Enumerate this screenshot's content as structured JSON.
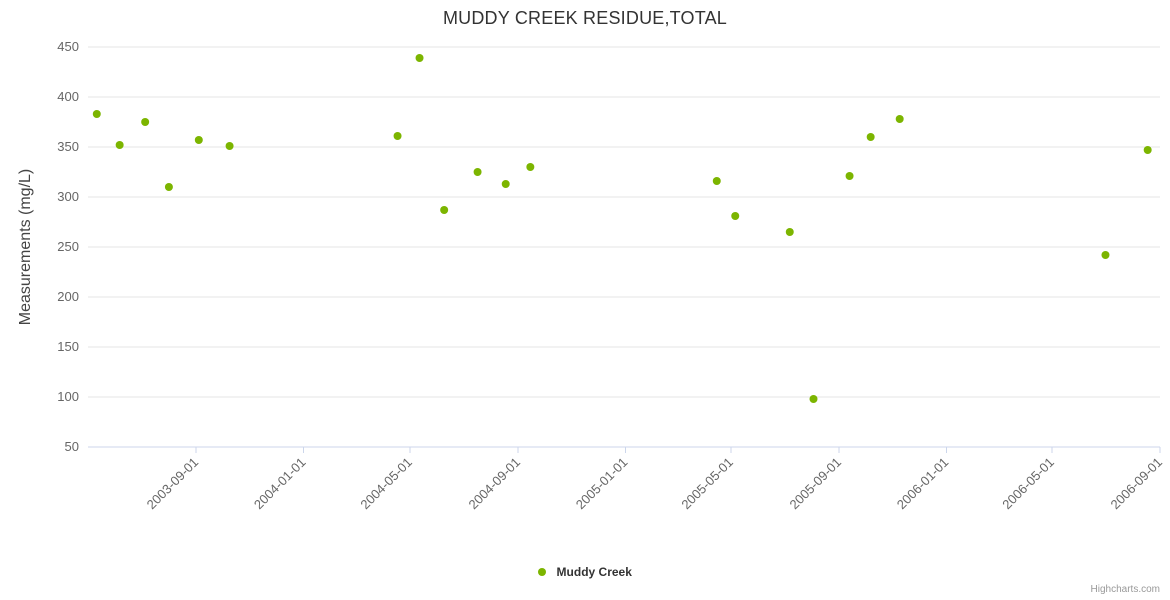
{
  "chart_data": {
    "type": "scatter",
    "title": "MUDDY CREEK RESIDUE,TOTAL",
    "xlabel": "",
    "ylabel": "Measurements (mg/L)",
    "ylim": [
      50,
      450
    ],
    "y_ticks": [
      50,
      100,
      150,
      200,
      250,
      300,
      350,
      400,
      450
    ],
    "xlim": [
      "2003-05-01",
      "2006-09-01"
    ],
    "x_ticks": [
      "2003-09-01",
      "2004-01-01",
      "2004-05-01",
      "2004-09-01",
      "2005-01-01",
      "2005-05-01",
      "2005-09-01",
      "2006-01-01",
      "2006-05-01",
      "2006-09-01"
    ],
    "grid": true,
    "legend_position": "bottom",
    "series": [
      {
        "name": "Muddy Creek",
        "color": "#7cb500",
        "points": [
          [
            "2003-05-11",
            383
          ],
          [
            "2003-06-06",
            352
          ],
          [
            "2003-07-05",
            375
          ],
          [
            "2003-08-01",
            310
          ],
          [
            "2003-09-04",
            357
          ],
          [
            "2003-10-09",
            351
          ],
          [
            "2004-04-17",
            361
          ],
          [
            "2004-05-12",
            439
          ],
          [
            "2004-06-09",
            287
          ],
          [
            "2004-07-17",
            325
          ],
          [
            "2004-08-18",
            313
          ],
          [
            "2004-09-15",
            330
          ],
          [
            "2005-04-15",
            316
          ],
          [
            "2005-05-06",
            281
          ],
          [
            "2005-07-07",
            265
          ],
          [
            "2005-08-03",
            98
          ],
          [
            "2005-09-13",
            321
          ],
          [
            "2005-10-07",
            360
          ],
          [
            "2005-11-09",
            378
          ],
          [
            "2006-07-01",
            242
          ],
          [
            "2006-08-18",
            347
          ]
        ]
      }
    ],
    "colors": {
      "grid": "#e6e6e6",
      "axis_line": "#ccd6eb",
      "tick_label": "#666666",
      "title": "#333333",
      "credits": "#999999"
    },
    "credits": "Highcharts.com"
  }
}
